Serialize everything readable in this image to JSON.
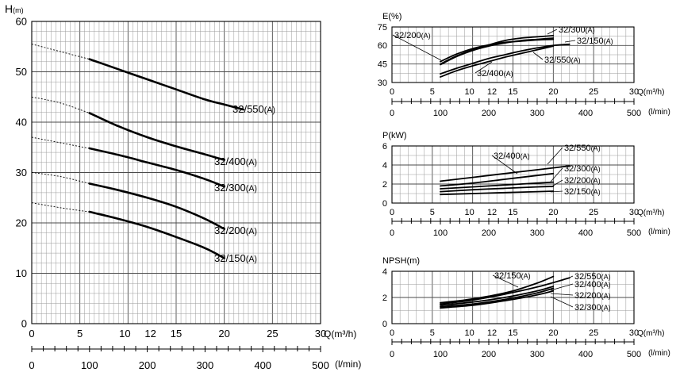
{
  "chart_data": [
    {
      "id": "H",
      "type": "line",
      "title": "",
      "ylabel_main": "H",
      "ylabel_sub": "(m)",
      "xlabel": "Q(m³/h)",
      "xlabel2": "(l/min)",
      "xlim": [
        0,
        30
      ],
      "ylim": [
        0,
        60
      ],
      "xticks": [
        0,
        5,
        10,
        12,
        15,
        20,
        25,
        30
      ],
      "yticks": [
        0,
        10,
        20,
        30,
        40,
        50,
        60
      ],
      "x2ticks": [
        0,
        100,
        200,
        300,
        400,
        500
      ],
      "series": [
        {
          "name": "32/550",
          "suffix": "(A)",
          "x": [
            0,
            3,
            6,
            9,
            12,
            15,
            18,
            20,
            22
          ],
          "y": [
            55.5,
            54.0,
            52.5,
            50.5,
            48.5,
            46.5,
            44.5,
            43.5,
            42.5
          ],
          "solid_from": 6
        },
        {
          "name": "32/400",
          "suffix": "(A)",
          "x": [
            0,
            3,
            6,
            9,
            12,
            15,
            18,
            20
          ],
          "y": [
            45.0,
            43.8,
            41.8,
            39.2,
            37.0,
            35.2,
            33.6,
            32.5
          ],
          "solid_from": 6
        },
        {
          "name": "32/300",
          "suffix": "(A)",
          "x": [
            0,
            3,
            6,
            9,
            12,
            15,
            18,
            20
          ],
          "y": [
            37.0,
            35.9,
            34.8,
            33.5,
            32.0,
            30.5,
            28.7,
            27.2
          ],
          "solid_from": 6
        },
        {
          "name": "32/200",
          "suffix": "(A)",
          "x": [
            0,
            3,
            6,
            9,
            12,
            15,
            18,
            20
          ],
          "y": [
            30.0,
            29.2,
            27.8,
            26.5,
            25.0,
            23.2,
            20.8,
            18.8
          ],
          "solid_from": 6
        },
        {
          "name": "32/150",
          "suffix": "(A)",
          "x": [
            0,
            3,
            6,
            9,
            12,
            15,
            18,
            20
          ],
          "y": [
            24.0,
            23.0,
            22.2,
            20.8,
            19.2,
            17.2,
            15.0,
            13.0
          ],
          "solid_from": 6
        }
      ]
    },
    {
      "id": "E",
      "type": "line",
      "ylabel": "E(%)",
      "xlabel": "Q(m³/h)",
      "xlabel2": "(l/min)",
      "xlim": [
        0,
        30
      ],
      "ylim": [
        30,
        75
      ],
      "xticks": [
        0,
        5,
        10,
        12,
        15,
        20,
        25,
        30
      ],
      "yticks": [
        30,
        45,
        60,
        75
      ],
      "x2ticks": [
        0,
        100,
        200,
        300,
        400,
        500
      ],
      "series": [
        {
          "name": "32/200",
          "suffix": "(A)",
          "x": [
            6,
            8,
            10,
            12,
            14,
            16,
            18,
            20
          ],
          "y": [
            47,
            53,
            57.5,
            60.5,
            62.5,
            63.5,
            64.5,
            65
          ]
        },
        {
          "name": "32/300",
          "suffix": "(A)",
          "x": [
            6,
            8,
            10,
            12,
            14,
            16,
            18,
            20
          ],
          "y": [
            44.5,
            51,
            56,
            59.5,
            62,
            64,
            65,
            66
          ]
        },
        {
          "name": "32/150",
          "suffix": "(A)",
          "x": [
            6,
            8,
            10,
            12,
            14,
            16,
            18,
            20
          ],
          "y": [
            45,
            51.5,
            56.5,
            60.5,
            64,
            66,
            67,
            68
          ]
        },
        {
          "name": "32/550",
          "suffix": "(A)",
          "x": [
            6,
            8,
            10,
            12,
            14,
            16,
            18,
            20,
            22
          ],
          "y": [
            37,
            41.5,
            45.5,
            49.5,
            52.5,
            55.5,
            58,
            60,
            61
          ]
        },
        {
          "name": "32/400",
          "suffix": "(A)",
          "x": [
            6,
            8,
            10,
            12,
            14,
            16,
            18,
            20
          ],
          "y": [
            34.5,
            39.5,
            43.5,
            47,
            50.5,
            53.5,
            56.5,
            59.5
          ]
        }
      ]
    },
    {
      "id": "P",
      "type": "line",
      "ylabel": "P(kW)",
      "xlabel": "Q(m³/h)",
      "xlabel2": "(l/min)",
      "xlim": [
        0,
        30
      ],
      "ylim": [
        0,
        6
      ],
      "xticks": [
        0,
        5,
        10,
        12,
        15,
        20,
        25,
        30
      ],
      "yticks": [
        0,
        2,
        4,
        6
      ],
      "x2ticks": [
        0,
        100,
        200,
        300,
        400,
        500
      ],
      "series": [
        {
          "name": "32/550",
          "suffix": "(A)",
          "x": [
            6,
            10,
            14,
            18,
            22
          ],
          "y": [
            2.3,
            2.7,
            3.1,
            3.5,
            3.9
          ]
        },
        {
          "name": "32/400",
          "suffix": "(A)",
          "x": [
            6,
            10,
            14,
            18,
            20
          ],
          "y": [
            1.8,
            2.1,
            2.5,
            2.9,
            3.1
          ]
        },
        {
          "name": "32/300",
          "suffix": "(A)",
          "x": [
            6,
            10,
            14,
            18,
            20
          ],
          "y": [
            1.5,
            1.7,
            1.9,
            2.1,
            2.2
          ]
        },
        {
          "name": "32/200",
          "suffix": "(A)",
          "x": [
            6,
            10,
            14,
            18,
            20
          ],
          "y": [
            1.2,
            1.4,
            1.55,
            1.7,
            1.75
          ]
        },
        {
          "name": "32/150",
          "suffix": "(A)",
          "x": [
            6,
            10,
            14,
            18,
            20
          ],
          "y": [
            0.9,
            1.0,
            1.1,
            1.2,
            1.25
          ]
        }
      ]
    },
    {
      "id": "NPSH",
      "type": "line",
      "ylabel": "NPSH(m)",
      "xlabel": "Q(m³/h)",
      "xlabel2": "(l/min)",
      "xlim": [
        0,
        30
      ],
      "ylim": [
        0,
        4
      ],
      "xticks": [
        0,
        5,
        10,
        12,
        15,
        20,
        25,
        30
      ],
      "yticks": [
        0,
        2,
        4
      ],
      "x2ticks": [
        0,
        100,
        200,
        300,
        400,
        500
      ],
      "series": [
        {
          "name": "32/150",
          "suffix": "(A)",
          "x": [
            6,
            9,
            12,
            15,
            18,
            20
          ],
          "y": [
            1.6,
            1.8,
            2.1,
            2.5,
            3.1,
            3.6
          ]
        },
        {
          "name": "32/550",
          "suffix": "(A)",
          "x": [
            6,
            10,
            14,
            18,
            22
          ],
          "y": [
            1.5,
            1.8,
            2.25,
            2.8,
            3.5
          ]
        },
        {
          "name": "32/400",
          "suffix": "(A)",
          "x": [
            6,
            10,
            14,
            18,
            20
          ],
          "y": [
            1.4,
            1.65,
            2.0,
            2.5,
            2.85
          ]
        },
        {
          "name": "32/200",
          "suffix": "(A)",
          "x": [
            6,
            10,
            14,
            18,
            20
          ],
          "y": [
            1.3,
            1.5,
            1.85,
            2.35,
            2.7
          ]
        },
        {
          "name": "32/300",
          "suffix": "(A)",
          "x": [
            6,
            10,
            14,
            18,
            20
          ],
          "y": [
            1.2,
            1.4,
            1.75,
            2.2,
            2.5
          ]
        }
      ]
    }
  ]
}
